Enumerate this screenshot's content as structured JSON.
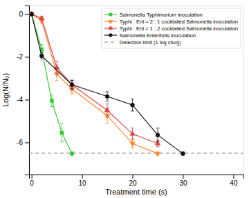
{
  "chart_data": {
    "type": "line",
    "xlabel": "Treatment time (s)",
    "ylabel": "Log(N/N₀)",
    "xlim": [
      -0.5,
      42
    ],
    "ylim": [
      -7.5,
      0.4
    ],
    "xticks": [
      0,
      10,
      20,
      30,
      40
    ],
    "yticks": [
      0,
      -2,
      -4,
      -6
    ],
    "grid": false,
    "legend": "upper right",
    "series": [
      {
        "name": "Salmonella Typhimurium inoculation",
        "color": "#33cc33",
        "marker": "square",
        "line_style": "solid",
        "x": [
          0,
          2,
          4,
          6,
          8
        ],
        "values": [
          0,
          -1.65,
          -4.05,
          -5.55,
          -6.52
        ],
        "errors": [
          0.04,
          0.22,
          0.28,
          0.42,
          0.08
        ]
      },
      {
        "name": "Typhi : Ent = 2 : 1 cocktailed Salmonella inoculation",
        "color": "#ff8833",
        "marker": "triangle-down",
        "line_style": "solid",
        "x": [
          0,
          2,
          5,
          8,
          15,
          20,
          25
        ],
        "values": [
          0,
          -0.3,
          -2.8,
          -3.5,
          -4.75,
          -6.05,
          -6.52
        ],
        "errors": [
          0.04,
          0.1,
          0.3,
          0.22,
          0.35,
          0.22,
          0.08
        ]
      },
      {
        "name": "Typhi : Ent = 1 : 2 cocktailed Salmonella inoculation",
        "color": "#dd4444",
        "marker": "triangle-up",
        "line_style": "solid",
        "x": [
          0,
          2,
          5,
          8,
          15,
          20,
          25
        ],
        "values": [
          0,
          -0.2,
          -2.5,
          -3.3,
          -4.5,
          -5.6,
          -6.05
        ],
        "errors": [
          0.04,
          0.1,
          0.28,
          0.22,
          0.3,
          0.28,
          0.15
        ]
      },
      {
        "name": "Salmonella Enteritidis inoculation",
        "color": "#111111",
        "marker": "circle",
        "line_style": "solid",
        "x": [
          0,
          2,
          8,
          15,
          20,
          25,
          30
        ],
        "values": [
          0,
          -1.95,
          -3.3,
          -3.85,
          -4.25,
          -5.65,
          -6.52
        ],
        "errors": [
          0.04,
          0.15,
          0.2,
          0.22,
          0.28,
          0.32,
          0.08
        ]
      }
    ],
    "annotations": [
      {
        "type": "hline",
        "y": -6.5,
        "text": "Detection limit (1 log cfu/g)",
        "color": "#888888",
        "line_style": "dashed"
      }
    ]
  }
}
